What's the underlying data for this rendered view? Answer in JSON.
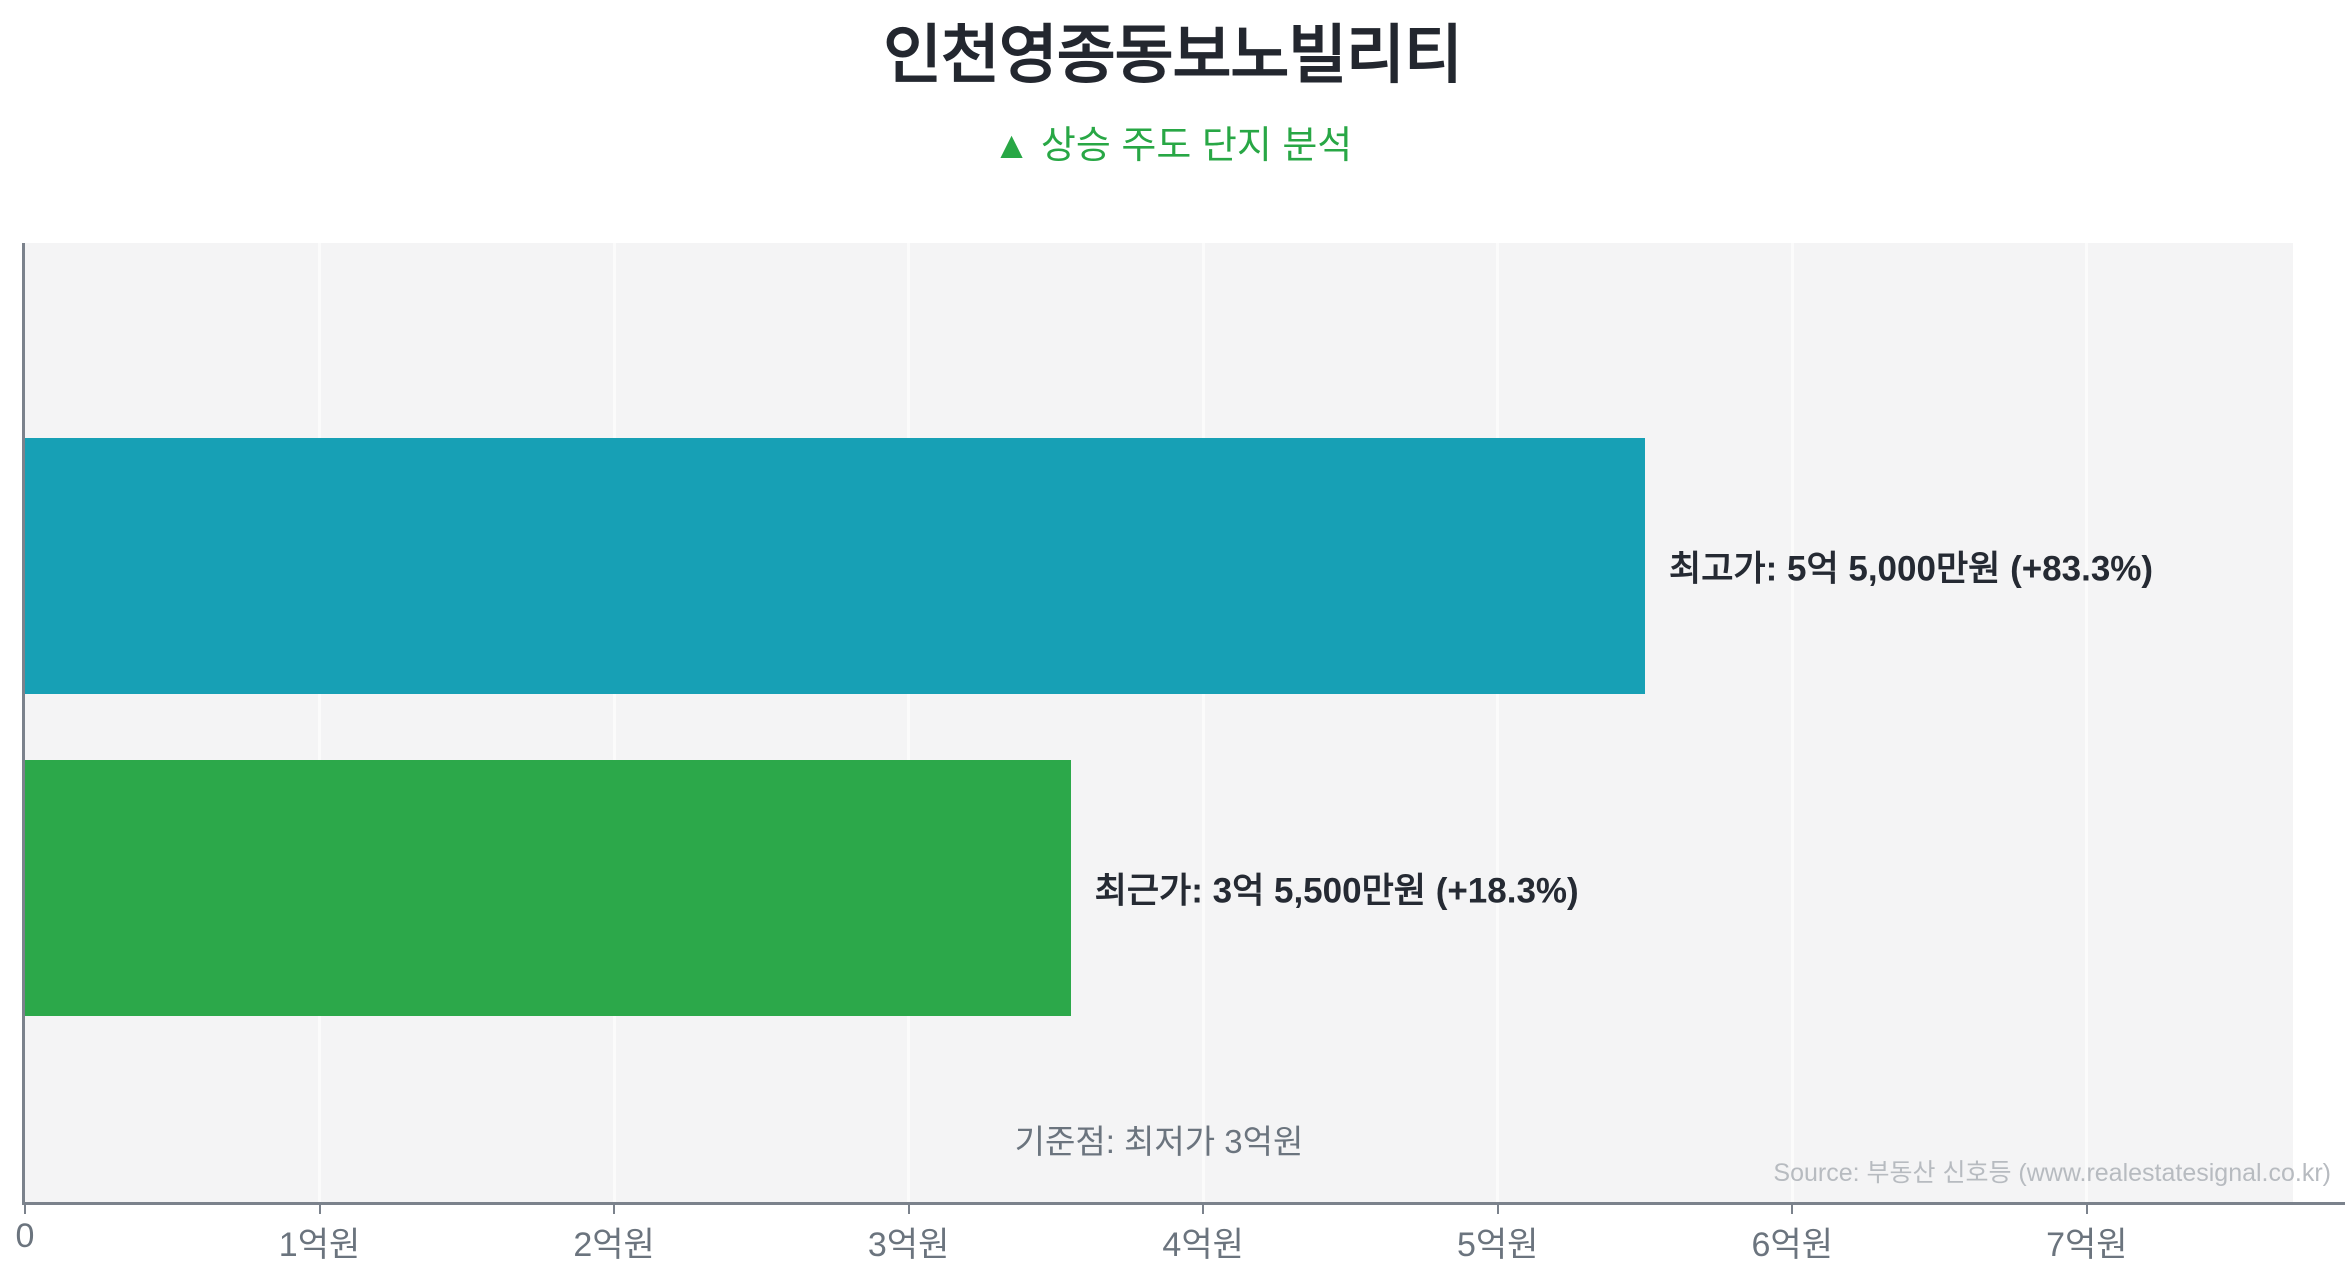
{
  "header": {
    "title": "인천영종동보노빌리티",
    "subtitle": "▲ 상승 주도 단지 분석"
  },
  "chart_data": {
    "type": "bar",
    "orientation": "horizontal",
    "title": "인천영종동보노빌리티",
    "subtitle": "▲ 상승 주도 단지 분석",
    "unit": "억원",
    "xlim": [
      0,
      7.7
    ],
    "grid": true,
    "legend": false,
    "x_ticks": [
      {
        "value": 0,
        "label": "0"
      },
      {
        "value": 1,
        "label": "1억원"
      },
      {
        "value": 2,
        "label": "2억원"
      },
      {
        "value": 3,
        "label": "3억원"
      },
      {
        "value": 4,
        "label": "4억원"
      },
      {
        "value": 5,
        "label": "5억원"
      },
      {
        "value": 6,
        "label": "6억원"
      },
      {
        "value": 7,
        "label": "7억원"
      }
    ],
    "bars": [
      {
        "name": "최고가",
        "value": 5.5,
        "price_text": "5억 5,000만원",
        "change_pct": "+83.3%",
        "label": "최고가: 5억 5,000만원 (+83.3%)",
        "color": "#17a0b5"
      },
      {
        "name": "최근가",
        "value": 3.55,
        "price_text": "3억 5,500만원",
        "change_pct": "+18.3%",
        "label": "최근가: 3억 5,500만원 (+18.3%)",
        "color": "#2ca84a"
      }
    ],
    "baseline_note": "기준점: 최저가 3억원"
  },
  "source": "Source: 부동산 신호등 (www.realestatesignal.co.kr)",
  "colors": {
    "title_text": "#23272f",
    "subtitle_accent": "#28a745",
    "bar_highest": "#17a0b5",
    "bar_recent": "#2ca84a",
    "plot_background": "#f4f4f5",
    "axis": "#7b828c",
    "tick_text": "#6b747e",
    "note_text": "#6b747e",
    "source_text": "#b7bbc0",
    "gridline": "#fbfbfb"
  }
}
